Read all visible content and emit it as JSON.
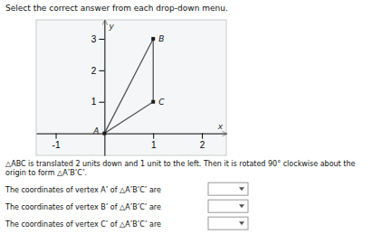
{
  "chart_data": {
    "type": "line",
    "title": "Select the correct answer from each drop-down menu.",
    "x": [
      0,
      1,
      1
    ],
    "values": [
      0,
      3,
      1
    ],
    "point_labels": [
      "A",
      "B",
      "C"
    ],
    "color": "#555555",
    "marker": "square",
    "xlabel": "x",
    "ylabel": "y",
    "xlim": [
      -1.4,
      2.5
    ],
    "ylim": [
      -0.7,
      3.6
    ],
    "xticks": [
      -1,
      1,
      2
    ],
    "yticks": [
      1,
      2,
      3
    ],
    "grid": false,
    "annotations": [
      "△ABC is translated 2 units down and 1 unit to the left. Then it is rotated 90° clockwise about the origin to form △A’B’C’.",
      "The coordinates of vertex A’ of △A’B’C’ are",
      "The coordinates of vertex B’ of △A’B’C’ are",
      "The coordinates of vertex C’ of △A’B’C’ are"
    ]
  }
}
